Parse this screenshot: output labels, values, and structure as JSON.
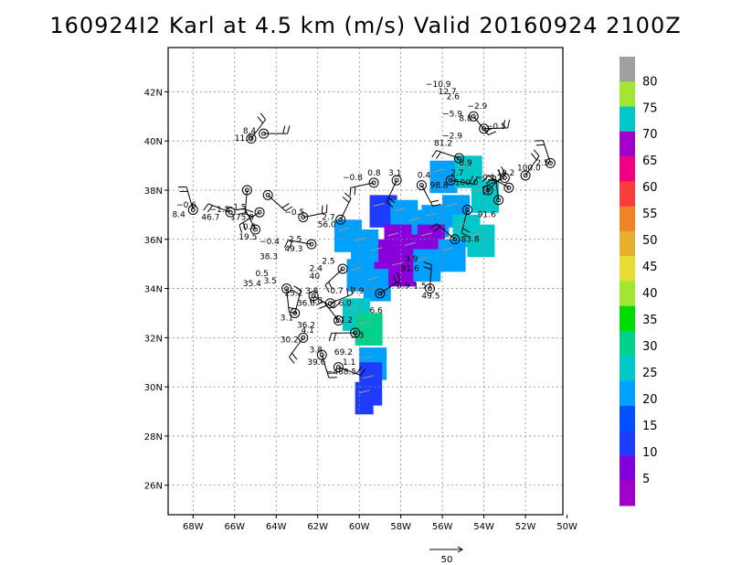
{
  "title": "160924I2 Karl at 4.5 km (m/s) Valid 20160924 2100Z",
  "map": {
    "lon_range": [
      -69.2,
      -50.2
    ],
    "lat_range": [
      24.8,
      43.8
    ],
    "lon_ticks": [
      {
        "v": -68,
        "label": "68W"
      },
      {
        "v": -66,
        "label": "66W"
      },
      {
        "v": -64,
        "label": "64W"
      },
      {
        "v": -62,
        "label": "62W"
      },
      {
        "v": -60,
        "label": "60W"
      },
      {
        "v": -58,
        "label": "58W"
      },
      {
        "v": -56,
        "label": "56W"
      },
      {
        "v": -54,
        "label": "54W"
      },
      {
        "v": -52,
        "label": "52W"
      },
      {
        "v": -50,
        "label": "50W"
      }
    ],
    "lat_ticks": [
      {
        "v": 26,
        "label": "26N"
      },
      {
        "v": 28,
        "label": "28N"
      },
      {
        "v": 30,
        "label": "30N"
      },
      {
        "v": 32,
        "label": "32N"
      },
      {
        "v": 34,
        "label": "34N"
      },
      {
        "v": 36,
        "label": "36N"
      },
      {
        "v": 38,
        "label": "38N"
      },
      {
        "v": 40,
        "label": "40N"
      },
      {
        "v": 42,
        "label": "42N"
      }
    ],
    "grid": true
  },
  "colorbar": {
    "levels": [
      {
        "label": "",
        "color": "#a000c8"
      },
      {
        "label": "5",
        "color": "#8200dc"
      },
      {
        "label": "",
        "color": "#1e3cff"
      },
      {
        "label": "10",
        "color": "#0050ff"
      },
      {
        "label": "",
        "color": "#00a0ff"
      },
      {
        "label": "15",
        "color": "#00c8c8"
      },
      {
        "label": "",
        "color": "#00d28c"
      },
      {
        "label": "20",
        "color": "#00dc00"
      },
      {
        "label": "",
        "color": "#a0e632"
      },
      {
        "label": "25",
        "color": "#e6dc32"
      },
      {
        "label": "",
        "color": "#e6af2d"
      },
      {
        "label": "30",
        "color": "#f08228"
      },
      {
        "label": "",
        "color": "#fa3c3c"
      },
      {
        "label": "35",
        "color": "#f00082"
      },
      {
        "label": "",
        "color": "#a000c8"
      },
      {
        "label": "",
        "color": "#a0a0a0"
      }
    ],
    "tick_labels": [
      "5",
      "10",
      "15",
      "20",
      "25",
      "30",
      "35",
      "40",
      "45",
      "50",
      "55",
      "60",
      "65",
      "70",
      "75",
      "80"
    ],
    "colors": [
      "#a000c8",
      "#8200dc",
      "#1e3cff",
      "#0050ff",
      "#00a0ff",
      "#00c8c8",
      "#00d28c",
      "#00dc00",
      "#a0e632",
      "#e6dc32",
      "#e6af2d",
      "#f08228",
      "#fa3c3c",
      "#f00082",
      "#a000c8",
      "#00c8c8",
      "#a0e632",
      "#a0a0a0"
    ]
  },
  "reference_vector": {
    "label": "50"
  },
  "shading": [
    {
      "lon": -59.5,
      "lat": 37.2,
      "w": 0.6,
      "h": 0.6,
      "level": 10
    },
    {
      "lon": -58.5,
      "lat": 37.0,
      "w": 0.6,
      "h": 0.6,
      "level": 15
    },
    {
      "lon": -57.8,
      "lat": 36.6,
      "w": 0.6,
      "h": 0.6,
      "level": 15
    },
    {
      "lon": -57.0,
      "lat": 36.8,
      "w": 0.6,
      "h": 0.6,
      "level": 15
    },
    {
      "lon": -56.0,
      "lat": 37.2,
      "w": 0.6,
      "h": 0.6,
      "level": 15
    },
    {
      "lon": -55.5,
      "lat": 36.4,
      "w": 0.6,
      "h": 0.6,
      "level": 20
    },
    {
      "lon": -54.8,
      "lat": 36.0,
      "w": 0.6,
      "h": 0.6,
      "level": 20
    },
    {
      "lon": -58.8,
      "lat": 36.0,
      "w": 0.6,
      "h": 0.6,
      "level": 5
    },
    {
      "lon": -58.0,
      "lat": 35.6,
      "w": 0.6,
      "h": 0.6,
      "level": 5
    },
    {
      "lon": -57.2,
      "lat": 36.0,
      "w": 0.6,
      "h": 0.6,
      "level": 5
    },
    {
      "lon": -59.6,
      "lat": 35.4,
      "w": 0.6,
      "h": 0.6,
      "level": 5
    },
    {
      "lon": -60.4,
      "lat": 35.8,
      "w": 0.6,
      "h": 0.6,
      "level": 15
    },
    {
      "lon": -61.2,
      "lat": 36.2,
      "w": 0.6,
      "h": 0.6,
      "level": 15
    },
    {
      "lon": -60.6,
      "lat": 34.6,
      "w": 0.6,
      "h": 0.6,
      "level": 15
    },
    {
      "lon": -59.8,
      "lat": 34.2,
      "w": 0.6,
      "h": 0.6,
      "level": 15
    },
    {
      "lon": -58.6,
      "lat": 34.8,
      "w": 0.6,
      "h": 0.6,
      "level": 5
    },
    {
      "lon": -57.4,
      "lat": 35.0,
      "w": 0.6,
      "h": 0.6,
      "level": 15
    },
    {
      "lon": -56.2,
      "lat": 35.4,
      "w": 0.6,
      "h": 0.6,
      "level": 15
    },
    {
      "lon": -56.6,
      "lat": 38.6,
      "w": 0.6,
      "h": 0.6,
      "level": 15
    },
    {
      "lon": -55.4,
      "lat": 38.8,
      "w": 0.6,
      "h": 0.6,
      "level": 20
    },
    {
      "lon": -54.6,
      "lat": 37.8,
      "w": 0.6,
      "h": 0.6,
      "level": 20
    },
    {
      "lon": -60.8,
      "lat": 33.0,
      "w": 0.6,
      "h": 0.6,
      "level": 20
    },
    {
      "lon": -60.2,
      "lat": 32.4,
      "w": 0.6,
      "h": 0.6,
      "level": 25
    },
    {
      "lon": -60.0,
      "lat": 31.0,
      "w": 0.6,
      "h": 0.6,
      "level": 15
    },
    {
      "lon": -60.0,
      "lat": 30.2,
      "w": 0.5,
      "h": 0.8,
      "level": 10
    },
    {
      "lon": -60.2,
      "lat": 29.6,
      "w": 0.4,
      "h": 0.6,
      "level": 10
    }
  ],
  "stations": [
    {
      "lon": -64.6,
      "lat": 40.3
    },
    {
      "lon": -65.2,
      "lat": 40.1
    },
    {
      "lon": -68.0,
      "lat": 37.2
    },
    {
      "lon": -66.2,
      "lat": 37.1
    },
    {
      "lon": -64.8,
      "lat": 37.1
    },
    {
      "lon": -65.4,
      "lat": 38.0
    },
    {
      "lon": -64.4,
      "lat": 37.8
    },
    {
      "lon": -62.7,
      "lat": 36.9
    },
    {
      "lon": -60.9,
      "lat": 36.8
    },
    {
      "lon": -65.0,
      "lat": 36.4
    },
    {
      "lon": -62.3,
      "lat": 35.8
    },
    {
      "lon": -60.8,
      "lat": 34.8
    },
    {
      "lon": -63.5,
      "lat": 34.0
    },
    {
      "lon": -62.2,
      "lat": 33.7
    },
    {
      "lon": -61.4,
      "lat": 33.4
    },
    {
      "lon": -63.1,
      "lat": 33.0
    },
    {
      "lon": -61.0,
      "lat": 32.7
    },
    {
      "lon": -60.2,
      "lat": 32.2
    },
    {
      "lon": -62.7,
      "lat": 32.0
    },
    {
      "lon": -61.8,
      "lat": 31.3
    },
    {
      "lon": -61.0,
      "lat": 30.8
    },
    {
      "lon": -59.0,
      "lat": 33.8
    },
    {
      "lon": -56.6,
      "lat": 34.0
    },
    {
      "lon": -55.4,
      "lat": 36.0
    },
    {
      "lon": -59.3,
      "lat": 38.3
    },
    {
      "lon": -58.2,
      "lat": 38.4
    },
    {
      "lon": -57.0,
      "lat": 38.2
    },
    {
      "lon": -55.6,
      "lat": 38.4
    },
    {
      "lon": -53.8,
      "lat": 38.0
    },
    {
      "lon": -53.3,
      "lat": 37.6
    },
    {
      "lon": -52.8,
      "lat": 38.1
    },
    {
      "lon": -53.0,
      "lat": 38.5
    },
    {
      "lon": -54.8,
      "lat": 37.2
    },
    {
      "lon": -54.5,
      "lat": 41.0
    },
    {
      "lon": -54.0,
      "lat": 40.5
    },
    {
      "lon": -52.0,
      "lat": 38.6
    },
    {
      "lon": -50.8,
      "lat": 39.1
    },
    {
      "lon": -55.2,
      "lat": 39.3
    }
  ],
  "labels": [
    {
      "lon": -56.8,
      "lat": 42.2,
      "text": "−10.9"
    },
    {
      "lon": -56.2,
      "lat": 41.9,
      "text": "12.7"
    },
    {
      "lon": -55.8,
      "lat": 41.7,
      "text": "2.6"
    },
    {
      "lon": -54.8,
      "lat": 41.3,
      "text": "−2.9"
    },
    {
      "lon": -56.0,
      "lat": 41.0,
      "text": "−5.9"
    },
    {
      "lon": -55.2,
      "lat": 40.8,
      "text": "8.8"
    },
    {
      "lon": -53.9,
      "lat": 40.5,
      "text": "−0.5"
    },
    {
      "lon": -56.0,
      "lat": 40.1,
      "text": "−2.9"
    },
    {
      "lon": -56.4,
      "lat": 39.8,
      "text": "81.2"
    },
    {
      "lon": -65.6,
      "lat": 40.3,
      "text": "8.4"
    },
    {
      "lon": -66.0,
      "lat": 40.0,
      "text": "11.0"
    },
    {
      "lon": -55.2,
      "lat": 39.0,
      "text": "0.9"
    },
    {
      "lon": -55.6,
      "lat": 38.6,
      "text": "2.7"
    },
    {
      "lon": -60.8,
      "lat": 38.4,
      "text": "−0.8"
    },
    {
      "lon": -59.6,
      "lat": 38.6,
      "text": "0.8"
    },
    {
      "lon": -58.6,
      "lat": 38.6,
      "text": "3.1"
    },
    {
      "lon": -57.2,
      "lat": 38.5,
      "text": "0.4"
    },
    {
      "lon": -56.6,
      "lat": 38.1,
      "text": "98.8"
    },
    {
      "lon": -55.4,
      "lat": 38.2,
      "text": "100.0"
    },
    {
      "lon": -54.4,
      "lat": 38.4,
      "text": "−0.1"
    },
    {
      "lon": -53.4,
      "lat": 38.6,
      "text": "10.2"
    },
    {
      "lon": -51.5,
      "lat": 39.0,
      "text": "2.5"
    },
    {
      "lon": -52.4,
      "lat": 38.8,
      "text": "100.0"
    },
    {
      "lon": -68.8,
      "lat": 37.3,
      "text": "−0.6"
    },
    {
      "lon": -69.0,
      "lat": 36.9,
      "text": "8.4"
    },
    {
      "lon": -67.2,
      "lat": 37.1,
      "text": "−1.5"
    },
    {
      "lon": -66.4,
      "lat": 37.2,
      "text": "−1.5"
    },
    {
      "lon": -67.6,
      "lat": 36.8,
      "text": "46.7"
    },
    {
      "lon": -66.2,
      "lat": 36.8,
      "text": "175.0"
    },
    {
      "lon": -63.6,
      "lat": 37.0,
      "text": "−0.5"
    },
    {
      "lon": -61.8,
      "lat": 36.8,
      "text": "2.7"
    },
    {
      "lon": -62.0,
      "lat": 36.5,
      "text": "56.0"
    },
    {
      "lon": -65.6,
      "lat": 36.4,
      "text": "0.6"
    },
    {
      "lon": -65.8,
      "lat": 36.0,
      "text": "19.5"
    },
    {
      "lon": -64.8,
      "lat": 35.8,
      "text": "−0.4"
    },
    {
      "lon": -63.4,
      "lat": 35.9,
      "text": "2.5"
    },
    {
      "lon": -63.6,
      "lat": 35.5,
      "text": "49.3"
    },
    {
      "lon": -64.8,
      "lat": 35.2,
      "text": "38.3"
    },
    {
      "lon": -61.8,
      "lat": 35.0,
      "text": "2.5"
    },
    {
      "lon": -62.4,
      "lat": 34.7,
      "text": "2.4"
    },
    {
      "lon": -57.8,
      "lat": 35.1,
      "text": "3.9"
    },
    {
      "lon": -58.0,
      "lat": 34.7,
      "text": "91.6"
    },
    {
      "lon": -55.1,
      "lat": 35.9,
      "text": "83.8"
    },
    {
      "lon": -54.3,
      "lat": 36.9,
      "text": "91.6"
    },
    {
      "lon": -65.0,
      "lat": 34.5,
      "text": "0.5"
    },
    {
      "lon": -65.6,
      "lat": 34.1,
      "text": "35.4"
    },
    {
      "lon": -64.6,
      "lat": 34.2,
      "text": "3.5"
    },
    {
      "lon": -62.4,
      "lat": 34.4,
      "text": "40"
    },
    {
      "lon": -63.6,
      "lat": 33.7,
      "text": "25.2"
    },
    {
      "lon": -62.6,
      "lat": 33.8,
      "text": "3.8"
    },
    {
      "lon": -61.4,
      "lat": 33.8,
      "text": "0.7"
    },
    {
      "lon": -60.4,
      "lat": 33.8,
      "text": "7.9"
    },
    {
      "lon": -58.2,
      "lat": 34.0,
      "text": "0.9"
    },
    {
      "lon": -57.4,
      "lat": 34.0,
      "text": "1.5"
    },
    {
      "lon": -57.0,
      "lat": 33.6,
      "text": "49.5"
    },
    {
      "lon": -63.0,
      "lat": 33.3,
      "text": "36.0"
    },
    {
      "lon": -62.4,
      "lat": 33.4,
      "text": "0.8"
    },
    {
      "lon": -61.0,
      "lat": 33.3,
      "text": "6.0"
    },
    {
      "lon": -59.5,
      "lat": 33.0,
      "text": "6.6"
    },
    {
      "lon": -63.8,
      "lat": 32.7,
      "text": "3.1"
    },
    {
      "lon": -63.0,
      "lat": 32.4,
      "text": "36.2"
    },
    {
      "lon": -61.2,
      "lat": 32.6,
      "text": "57.2"
    },
    {
      "lon": -60.4,
      "lat": 32.0,
      "text": "3.3"
    },
    {
      "lon": -62.8,
      "lat": 32.2,
      "text": "4.1"
    },
    {
      "lon": -63.8,
      "lat": 31.8,
      "text": "30.2"
    },
    {
      "lon": -62.4,
      "lat": 31.4,
      "text": "3.8"
    },
    {
      "lon": -61.2,
      "lat": 31.3,
      "text": "69.2"
    },
    {
      "lon": -62.5,
      "lat": 30.9,
      "text": "39.6"
    },
    {
      "lon": -60.8,
      "lat": 30.9,
      "text": "1.1"
    },
    {
      "lon": -61.6,
      "lat": 30.5,
      "text": "−468.5"
    }
  ]
}
